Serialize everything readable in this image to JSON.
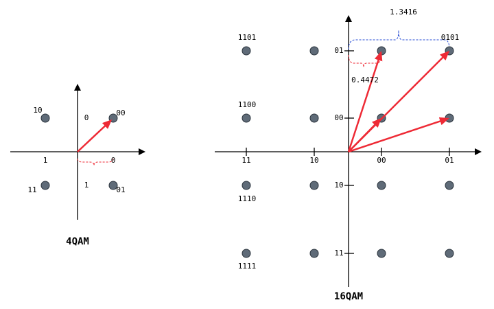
{
  "qam4": {
    "title": "4QAM",
    "points": [
      {
        "label": "10"
      },
      {
        "label": "00"
      },
      {
        "label": "11"
      },
      {
        "label": "01"
      }
    ],
    "axis_labels": [
      "0",
      "1",
      "0",
      "1"
    ]
  },
  "qam16": {
    "title": "16QAM",
    "x_labels": [
      "11",
      "10",
      "00",
      "01"
    ],
    "y_labels": [
      "01",
      "00",
      "10",
      "11"
    ],
    "point_labels": [
      "1101",
      "1100",
      "1110",
      "1111",
      "0101"
    ],
    "distance_long": "1.3416",
    "distance_short": "0.4472"
  }
}
